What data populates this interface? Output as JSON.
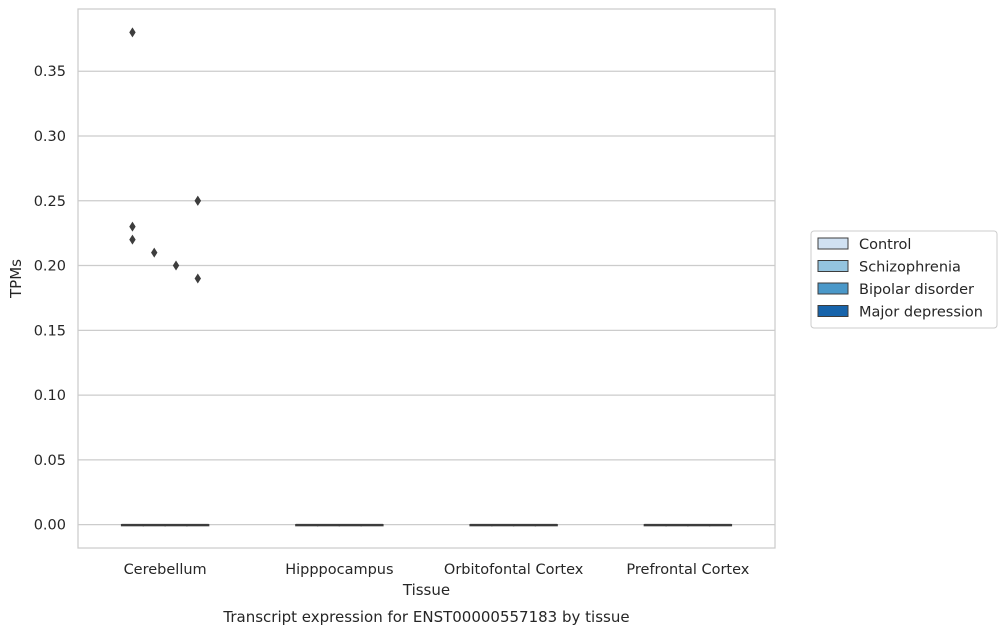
{
  "chart_data": {
    "type": "box",
    "title": "Transcript expression for ENST00000557183 by tissue",
    "xlabel": "Tissue",
    "ylabel": "TPMs",
    "ylim": [
      -0.018,
      0.398
    ],
    "yticks": [
      0.0,
      0.05,
      0.1,
      0.15,
      0.2,
      0.25,
      0.3,
      0.35
    ],
    "ytick_labels": [
      "0.00",
      "0.05",
      "0.10",
      "0.15",
      "0.20",
      "0.25",
      "0.30",
      "0.35"
    ],
    "grid": "horizontal",
    "legend_position": "right",
    "categories": [
      "Cerebellum",
      "Hipppocampus",
      "Orbitofontal Cortex",
      "Prefrontal Cortex"
    ],
    "series": [
      {
        "name": "Control",
        "color": "#d0e1f2",
        "boxes": [
          {
            "q1": 0,
            "median": 0,
            "q3": 0,
            "outliers": [
              0.38,
              0.23,
              0.22
            ]
          },
          {
            "q1": 0,
            "median": 0,
            "q3": 0,
            "outliers": []
          },
          {
            "q1": 0,
            "median": 0,
            "q3": 0,
            "outliers": []
          },
          {
            "q1": 0,
            "median": 0,
            "q3": 0,
            "outliers": []
          }
        ]
      },
      {
        "name": "Schizophrenia",
        "color": "#94c4df",
        "boxes": [
          {
            "q1": 0,
            "median": 0,
            "q3": 0,
            "outliers": [
              0.21
            ]
          },
          {
            "q1": 0,
            "median": 0,
            "q3": 0,
            "outliers": []
          },
          {
            "q1": 0,
            "median": 0,
            "q3": 0,
            "outliers": []
          },
          {
            "q1": 0,
            "median": 0,
            "q3": 0,
            "outliers": []
          }
        ]
      },
      {
        "name": "Bipolar disorder",
        "color": "#4a98c9",
        "boxes": [
          {
            "q1": 0,
            "median": 0,
            "q3": 0,
            "outliers": [
              0.2
            ]
          },
          {
            "q1": 0,
            "median": 0,
            "q3": 0,
            "outliers": []
          },
          {
            "q1": 0,
            "median": 0,
            "q3": 0,
            "outliers": []
          },
          {
            "q1": 0,
            "median": 0,
            "q3": 0,
            "outliers": []
          }
        ]
      },
      {
        "name": "Major depression",
        "color": "#1764ab",
        "boxes": [
          {
            "q1": 0,
            "median": 0,
            "q3": 0,
            "outliers": [
              0.25,
              0.25,
              0.19
            ]
          },
          {
            "q1": 0,
            "median": 0,
            "q3": 0,
            "outliers": []
          },
          {
            "q1": 0,
            "median": 0,
            "q3": 0,
            "outliers": []
          },
          {
            "q1": 0,
            "median": 0,
            "q3": 0,
            "outliers": []
          }
        ]
      }
    ]
  }
}
